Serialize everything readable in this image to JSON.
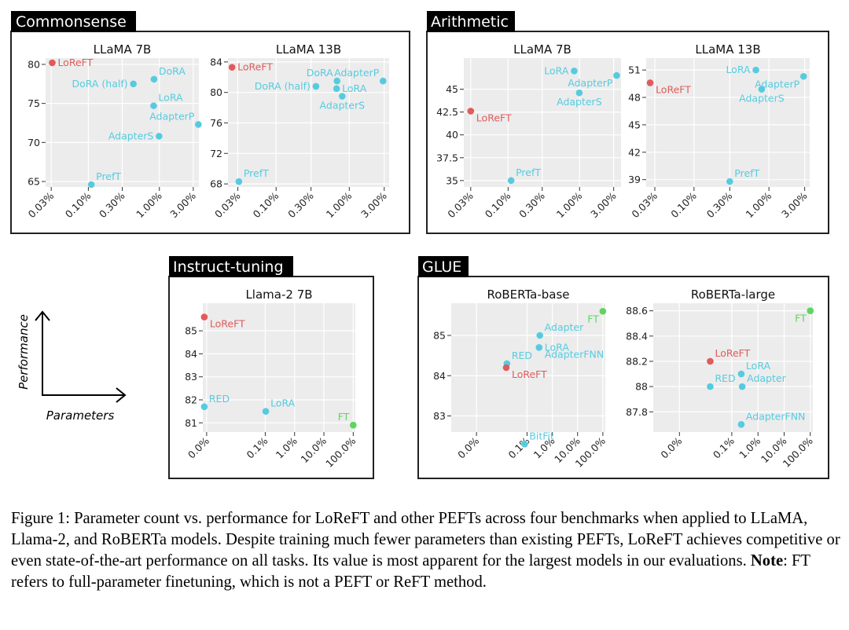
{
  "colors": {
    "loreft": "#e05b5b",
    "baseline": "#56cbe0",
    "ft": "#5cd65c",
    "panel_bg": "#ececec",
    "grid": "#ffffff"
  },
  "groups": [
    {
      "title": "Commonsense"
    },
    {
      "title": "Arithmetic"
    },
    {
      "title": "Instruct-tuning"
    },
    {
      "title": "GLUE"
    }
  ],
  "axis_hint": {
    "ylabel": "Performance",
    "xlabel": "Parameters"
  },
  "caption": {
    "prefix": "Figure 1: Parameter count vs. performance for LoReFT and other PEFTs across four benchmarks when applied to LLaMA, Llama-2, and RoBERTa models. Despite training much fewer parameters than existing PEFTs, LoReFT achieves competitive or even state-of-the-art performance on all tasks. Its value is most apparent for the largest models in our evaluations. ",
    "note_label": "Note",
    "suffix": ": FT refers to full-parameter finetuning, which is not a PEFT or ReFT method."
  },
  "chart_data": [
    {
      "type": "scatter",
      "group": "Commonsense",
      "title": "LLaMA 7B",
      "xscale": "log",
      "xlim": [
        0.025,
        3.6
      ],
      "ylim": [
        64.3,
        80.8
      ],
      "xticks": [
        0.03,
        0.1,
        0.3,
        1,
        3
      ],
      "xtick_labels": [
        "0.03%",
        "0.10%",
        "0.30%",
        "1.00%",
        "3.00%"
      ],
      "yticks": [
        65,
        70,
        75,
        80
      ],
      "ytick_labels": [
        "65",
        "70",
        "75",
        "80"
      ],
      "points": [
        {
          "label": "LoReFT",
          "x": 0.031,
          "y": 80.2,
          "kind": "loreft",
          "anchor": "right"
        },
        {
          "label": "DoRA (half)",
          "x": 0.43,
          "y": 77.5,
          "kind": "baseline",
          "anchor": "left"
        },
        {
          "label": "DoRA",
          "x": 0.84,
          "y": 78.1,
          "kind": "baseline",
          "anchor": "right-up"
        },
        {
          "label": "LoRA",
          "x": 0.83,
          "y": 74.7,
          "kind": "baseline",
          "anchor": "right-up"
        },
        {
          "label": "AdapterP",
          "x": 3.54,
          "y": 72.3,
          "kind": "baseline",
          "anchor": "left-up"
        },
        {
          "label": "AdapterS",
          "x": 0.99,
          "y": 70.8,
          "kind": "baseline",
          "anchor": "left"
        },
        {
          "label": "PrefT",
          "x": 0.11,
          "y": 64.6,
          "kind": "baseline",
          "anchor": "right-up"
        }
      ]
    },
    {
      "type": "scatter",
      "group": "Commonsense",
      "title": "LLaMA 13B",
      "xscale": "log",
      "xlim": [
        0.022,
        3.5
      ],
      "ylim": [
        67.6,
        84.5
      ],
      "xticks": [
        0.03,
        0.1,
        0.3,
        1,
        3
      ],
      "xtick_labels": [
        "0.03%",
        "0.10%",
        "0.30%",
        "1.00%",
        "3.00%"
      ],
      "yticks": [
        68,
        72,
        76,
        80,
        84
      ],
      "ytick_labels": [
        "68",
        "72",
        "76",
        "80",
        "84"
      ],
      "points": [
        {
          "label": "LoReFT",
          "x": 0.025,
          "y": 83.3,
          "kind": "loreft",
          "anchor": "right"
        },
        {
          "label": "DoRA (half)",
          "x": 0.35,
          "y": 80.8,
          "kind": "baseline",
          "anchor": "left"
        },
        {
          "label": "DoRA",
          "x": 0.68,
          "y": 81.5,
          "kind": "baseline",
          "anchor": "left-up"
        },
        {
          "label": "LoRA",
          "x": 0.67,
          "y": 80.5,
          "kind": "baseline",
          "anchor": "right"
        },
        {
          "label": "AdapterP",
          "x": 2.89,
          "y": 81.5,
          "kind": "baseline",
          "anchor": "left-up"
        },
        {
          "label": "AdapterS",
          "x": 0.8,
          "y": 79.5,
          "kind": "baseline",
          "anchor": "below"
        },
        {
          "label": "PrefT",
          "x": 0.031,
          "y": 68.3,
          "kind": "baseline",
          "anchor": "right-up"
        }
      ]
    },
    {
      "type": "scatter",
      "group": "Arithmetic",
      "title": "LLaMA 7B",
      "xscale": "log",
      "xlim": [
        0.024,
        3.8
      ],
      "ylim": [
        34.3,
        48.4
      ],
      "xticks": [
        0.03,
        0.1,
        0.3,
        1,
        3
      ],
      "xtick_labels": [
        "0.03%",
        "0.10%",
        "0.30%",
        "1.00%",
        "3.00%"
      ],
      "yticks": [
        35,
        37.5,
        40,
        42.5,
        45
      ],
      "ytick_labels": [
        "35",
        "37.5",
        "40",
        "42.5",
        "45"
      ],
      "points": [
        {
          "label": "LoReFT",
          "x": 0.03,
          "y": 42.6,
          "kind": "loreft",
          "anchor": "right-down"
        },
        {
          "label": "LoRA",
          "x": 0.84,
          "y": 47.0,
          "kind": "baseline",
          "anchor": "left"
        },
        {
          "label": "AdapterP",
          "x": 3.3,
          "y": 46.5,
          "kind": "baseline",
          "anchor": "left-down"
        },
        {
          "label": "AdapterS",
          "x": 0.99,
          "y": 44.6,
          "kind": "baseline",
          "anchor": "below"
        },
        {
          "label": "PrefT",
          "x": 0.11,
          "y": 35.0,
          "kind": "baseline",
          "anchor": "right-up"
        }
      ]
    },
    {
      "type": "scatter",
      "group": "Arithmetic",
      "title": "LLaMA 13B",
      "xscale": "log",
      "xlim": [
        0.023,
        3.5
      ],
      "ylim": [
        38.2,
        52.3
      ],
      "xticks": [
        0.03,
        0.1,
        0.3,
        1,
        3
      ],
      "xtick_labels": [
        "0.03%",
        "0.10%",
        "0.30%",
        "1.00%",
        "3.00%"
      ],
      "yticks": [
        39,
        42,
        45,
        48,
        51
      ],
      "ytick_labels": [
        "39",
        "42",
        "45",
        "48",
        "51"
      ],
      "points": [
        {
          "label": "LoReFT",
          "x": 0.026,
          "y": 49.6,
          "kind": "loreft",
          "anchor": "right-down"
        },
        {
          "label": "LoRA",
          "x": 0.67,
          "y": 51.0,
          "kind": "baseline",
          "anchor": "left"
        },
        {
          "label": "AdapterP",
          "x": 2.9,
          "y": 50.3,
          "kind": "baseline",
          "anchor": "left-down"
        },
        {
          "label": "AdapterS",
          "x": 0.8,
          "y": 48.9,
          "kind": "baseline",
          "anchor": "below"
        },
        {
          "label": "PrefT",
          "x": 0.3,
          "y": 38.8,
          "kind": "baseline",
          "anchor": "right-up"
        }
      ]
    },
    {
      "type": "scatter",
      "group": "Instruct-tuning",
      "title": "Llama-2 7B",
      "xscale": "symlog",
      "xlim": [
        -0.0013,
        118
      ],
      "ylim": [
        80.6,
        86.2
      ],
      "xticks": [
        0,
        0.1,
        1,
        10,
        100
      ],
      "xtick_labels": [
        "0.0%",
        "0.1%",
        "1.0%",
        "10.0%",
        "100.0%"
      ],
      "yticks": [
        81,
        82,
        83,
        84,
        85
      ],
      "ytick_labels": [
        "81",
        "82",
        "83",
        "84",
        "85"
      ],
      "points": [
        {
          "label": "LoReFT",
          "x": -0.0008,
          "y": 85.6,
          "kind": "loreft",
          "anchor": "right-down"
        },
        {
          "label": "RED",
          "x": -0.0008,
          "y": 81.7,
          "kind": "baseline",
          "anchor": "right-up"
        },
        {
          "label": "LoRA",
          "x": 0.104,
          "y": 81.5,
          "kind": "baseline",
          "anchor": "right-up"
        },
        {
          "label": "FT",
          "x": 100,
          "y": 80.9,
          "kind": "ft",
          "anchor": "left-up"
        }
      ]
    },
    {
      "type": "scatter",
      "group": "GLUE",
      "title": "RoBERTa-base",
      "xscale": "symlog",
      "xlim": [
        -0.01,
        125
      ],
      "ylim": [
        82.6,
        85.8
      ],
      "xticks": [
        0,
        0.1,
        1,
        10,
        100
      ],
      "xtick_labels": [
        "0.0%",
        "0.1%",
        "1.0%",
        "10.0%",
        "100.0%"
      ],
      "yticks": [
        83,
        84,
        85
      ],
      "ytick_labels": [
        "83",
        "84",
        "85"
      ],
      "points": [
        {
          "label": "FT",
          "x": 100,
          "y": 85.6,
          "kind": "ft",
          "anchor": "left-down"
        },
        {
          "label": "Adapter",
          "x": 0.32,
          "y": 85.0,
          "kind": "baseline",
          "anchor": "right-up"
        },
        {
          "label": "LoRA",
          "x": 0.3,
          "y": 84.7,
          "kind": "baseline",
          "anchor": "right"
        },
        {
          "label": "AdapterFNN",
          "x": 0.3,
          "y": 84.7,
          "kind": "baseline",
          "anchor": "right-down"
        },
        {
          "label": "RED",
          "x": 0.016,
          "y": 84.3,
          "kind": "baseline",
          "anchor": "right-up"
        },
        {
          "label": "LoReFT",
          "x": 0.015,
          "y": 84.2,
          "kind": "loreft",
          "anchor": "right-down"
        },
        {
          "label": "BitFit",
          "x": 0.08,
          "y": 82.3,
          "kind": "baseline",
          "anchor": "right-up"
        }
      ]
    },
    {
      "type": "scatter",
      "group": "GLUE",
      "title": "RoBERTa-large",
      "xscale": "symlog",
      "xlim": [
        -0.01,
        125
      ],
      "ylim": [
        87.64,
        88.66
      ],
      "xticks": [
        0,
        0.1,
        1,
        10,
        100
      ],
      "xtick_labels": [
        "0.0%",
        "0.1%",
        "1.0%",
        "10.0%",
        "100.0%"
      ],
      "yticks": [
        87.8,
        88.0,
        88.2,
        88.4,
        88.6
      ],
      "ytick_labels": [
        "87.8",
        "88",
        "88.2",
        "88.4",
        "88.6"
      ],
      "points": [
        {
          "label": "FT",
          "x": 100,
          "y": 88.6,
          "kind": "ft",
          "anchor": "left-down"
        },
        {
          "label": "LoReFT",
          "x": 0.015,
          "y": 88.2,
          "kind": "loreft",
          "anchor": "right-up"
        },
        {
          "label": "LoRA",
          "x": 0.23,
          "y": 88.1,
          "kind": "baseline",
          "anchor": "right-up"
        },
        {
          "label": "RED",
          "x": 0.015,
          "y": 88.0,
          "kind": "baseline",
          "anchor": "right-up"
        },
        {
          "label": "Adapter",
          "x": 0.25,
          "y": 88.0,
          "kind": "baseline",
          "anchor": "right-up"
        },
        {
          "label": "AdapterFNN",
          "x": 0.23,
          "y": 87.7,
          "kind": "baseline",
          "anchor": "right-up"
        }
      ]
    }
  ]
}
